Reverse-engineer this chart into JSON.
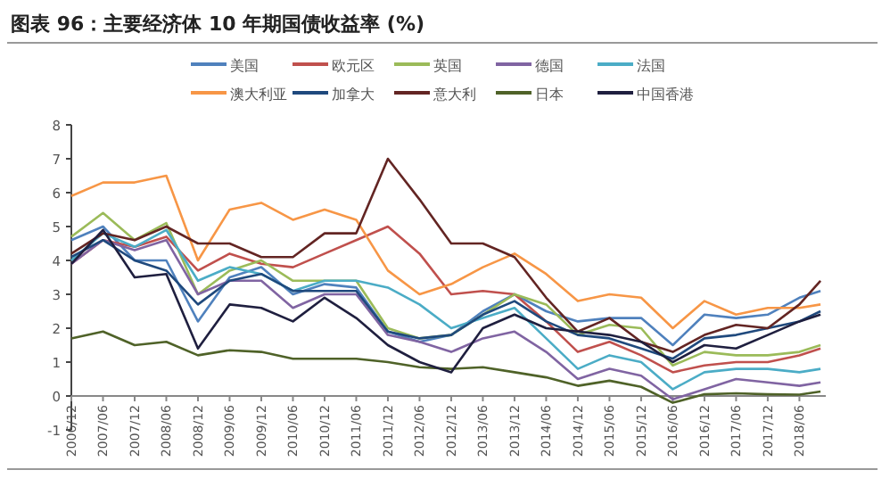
{
  "chart_data": {
    "type": "line",
    "title": "图表 96：主要经济体 10 年期国债收益率 (%)",
    "x": [
      "2006-12",
      "2007-06",
      "2007-12",
      "2008-06",
      "2008-12",
      "2009-06",
      "2009-12",
      "2010-06",
      "2010-12",
      "2011-06",
      "2011-12",
      "2012-06",
      "2012-12",
      "2013-06",
      "2013-12",
      "2014-06",
      "2014-12",
      "2015-06",
      "2015-12",
      "2016-06",
      "2016-12",
      "2017-06",
      "2017-12",
      "2018-06",
      "2018-10"
    ],
    "xlim": [
      "2006-12",
      "2018-11"
    ],
    "xticks": [
      {
        "value": "2006-12",
        "label": "2006/12"
      },
      {
        "value": "2007-06",
        "label": "2007/06"
      },
      {
        "value": "2007-12",
        "label": "2007/12"
      },
      {
        "value": "2008-06",
        "label": "2008/06"
      },
      {
        "value": "2008-12",
        "label": "2008/12"
      },
      {
        "value": "2009-06",
        "label": "2009/06"
      },
      {
        "value": "2009-12",
        "label": "2009/12"
      },
      {
        "value": "2010-06",
        "label": "2010/06"
      },
      {
        "value": "2010-12",
        "label": "2010/12"
      },
      {
        "value": "2011-06",
        "label": "2011/06"
      },
      {
        "value": "2011-12",
        "label": "2011/12"
      },
      {
        "value": "2012-06",
        "label": "2012/06"
      },
      {
        "value": "2012-12",
        "label": "2012/12"
      },
      {
        "value": "2013-06",
        "label": "2013/06"
      },
      {
        "value": "2013-12",
        "label": "2013/12"
      },
      {
        "value": "2014-06",
        "label": "2014/06"
      },
      {
        "value": "2014-12",
        "label": "2014/12"
      },
      {
        "value": "2015-06",
        "label": "2015/06"
      },
      {
        "value": "2015-12",
        "label": "2015/12"
      },
      {
        "value": "2016-06",
        "label": "2016/06"
      },
      {
        "value": "2016-12",
        "label": "2016/12"
      },
      {
        "value": "2017-06",
        "label": "2017/06"
      },
      {
        "value": "2017-12",
        "label": "2017/12"
      },
      {
        "value": "2018-06",
        "label": "2018/06"
      }
    ],
    "ylim": [
      -1,
      8
    ],
    "yticks": [
      -1,
      0,
      1,
      2,
      3,
      4,
      5,
      6,
      7,
      8
    ],
    "legend": "top",
    "grid": false,
    "marker": "none",
    "line_style": "solid",
    "series": [
      {
        "name": "美国",
        "color": "#4f81bd",
        "values": [
          4.6,
          5.0,
          4.0,
          4.0,
          2.2,
          3.5,
          3.8,
          3.0,
          3.3,
          3.2,
          1.9,
          1.6,
          1.8,
          2.5,
          3.0,
          2.5,
          2.2,
          2.3,
          2.3,
          1.5,
          2.4,
          2.3,
          2.4,
          2.9,
          3.1
        ]
      },
      {
        "name": "欧元区",
        "color": "#c0504d",
        "values": [
          3.9,
          4.6,
          4.4,
          4.7,
          3.7,
          4.2,
          3.9,
          3.8,
          4.2,
          4.6,
          5.0,
          4.2,
          3.0,
          3.1,
          3.0,
          2.2,
          1.3,
          1.6,
          1.2,
          0.7,
          0.9,
          1.0,
          1.0,
          1.2,
          1.4
        ]
      },
      {
        "name": "英国",
        "color": "#9bbb59",
        "values": [
          4.7,
          5.4,
          4.6,
          5.1,
          3.0,
          3.7,
          4.0,
          3.4,
          3.4,
          3.4,
          2.0,
          1.7,
          1.8,
          2.4,
          3.0,
          2.7,
          1.8,
          2.1,
          2.0,
          0.9,
          1.3,
          1.2,
          1.2,
          1.3,
          1.5
        ]
      },
      {
        "name": "德国",
        "color": "#8064a2",
        "values": [
          3.9,
          4.6,
          4.3,
          4.6,
          3.0,
          3.4,
          3.4,
          2.6,
          3.0,
          3.0,
          1.8,
          1.6,
          1.3,
          1.7,
          1.9,
          1.3,
          0.5,
          0.8,
          0.6,
          -0.1,
          0.2,
          0.5,
          0.4,
          0.3,
          0.4
        ]
      },
      {
        "name": "法国",
        "color": "#4bacc6",
        "values": [
          4.0,
          4.8,
          4.4,
          4.9,
          3.4,
          3.8,
          3.6,
          3.1,
          3.4,
          3.4,
          3.2,
          2.7,
          2.0,
          2.3,
          2.6,
          1.7,
          0.8,
          1.2,
          1.0,
          0.2,
          0.7,
          0.8,
          0.8,
          0.7,
          0.8
        ]
      },
      {
        "name": "澳大利亚",
        "color": "#f79646",
        "values": [
          5.9,
          6.3,
          6.3,
          6.5,
          4.0,
          5.5,
          5.7,
          5.2,
          5.5,
          5.2,
          3.7,
          3.0,
          3.3,
          3.8,
          4.2,
          3.6,
          2.8,
          3.0,
          2.9,
          2.0,
          2.8,
          2.4,
          2.6,
          2.6,
          2.7
        ]
      },
      {
        "name": "加拿大",
        "color": "#1f497d",
        "values": [
          4.1,
          4.6,
          4.0,
          3.7,
          2.7,
          3.4,
          3.6,
          3.1,
          3.1,
          3.1,
          1.9,
          1.7,
          1.8,
          2.4,
          2.8,
          2.2,
          1.8,
          1.7,
          1.4,
          1.1,
          1.7,
          1.8,
          2.0,
          2.2,
          2.5
        ]
      },
      {
        "name": "意大利",
        "color": "#632523",
        "values": [
          4.2,
          4.8,
          4.6,
          5.0,
          4.5,
          4.5,
          4.1,
          4.1,
          4.8,
          4.8,
          7.0,
          5.8,
          4.5,
          4.5,
          4.1,
          2.9,
          1.9,
          2.3,
          1.6,
          1.3,
          1.8,
          2.1,
          2.0,
          2.7,
          3.4
        ]
      },
      {
        "name": "日本",
        "color": "#4f6228",
        "values": [
          1.7,
          1.9,
          1.5,
          1.6,
          1.2,
          1.35,
          1.3,
          1.1,
          1.1,
          1.1,
          1.0,
          0.85,
          0.8,
          0.85,
          0.7,
          0.55,
          0.3,
          0.45,
          0.27,
          -0.2,
          0.05,
          0.08,
          0.05,
          0.04,
          0.13
        ]
      },
      {
        "name": "中国香港",
        "color": "#1f1f3f",
        "values": [
          3.9,
          4.9,
          3.5,
          3.6,
          1.4,
          2.7,
          2.6,
          2.2,
          2.9,
          2.3,
          1.5,
          1.0,
          0.7,
          2.0,
          2.4,
          2.0,
          1.9,
          1.8,
          1.6,
          1.0,
          1.5,
          1.4,
          1.8,
          2.2,
          2.4
        ]
      }
    ]
  }
}
